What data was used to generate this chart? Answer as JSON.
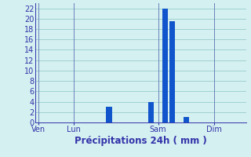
{
  "title": "",
  "xlabel": "Précipitations 24h ( mm )",
  "ylabel": "",
  "background_color": "#d4f0f0",
  "bar_color": "#1155cc",
  "grid_color": "#99cccc",
  "axis_color": "#3333aa",
  "text_color": "#3333aa",
  "ylim": [
    0,
    23
  ],
  "yticks": [
    0,
    2,
    4,
    6,
    8,
    10,
    12,
    14,
    16,
    18,
    20,
    22
  ],
  "n_bars": 30,
  "y_values": [
    0,
    0,
    0,
    0,
    0,
    0,
    0,
    0,
    0,
    0,
    3,
    0,
    0,
    0,
    0,
    0,
    4,
    0,
    22,
    19.5,
    0,
    1,
    0,
    0,
    0,
    0,
    0,
    0,
    0,
    0
  ],
  "xtick_positions": [
    0,
    5,
    17,
    25
  ],
  "xtick_labels": [
    "Ven",
    "Lun",
    "Sam",
    "Dim"
  ],
  "vline_positions": [
    0,
    5,
    17,
    25
  ],
  "bar_width": 0.85,
  "figsize": [
    3.2,
    2.0
  ],
  "dpi": 100,
  "xlabel_fontsize": 8.5,
  "tick_fontsize": 7
}
